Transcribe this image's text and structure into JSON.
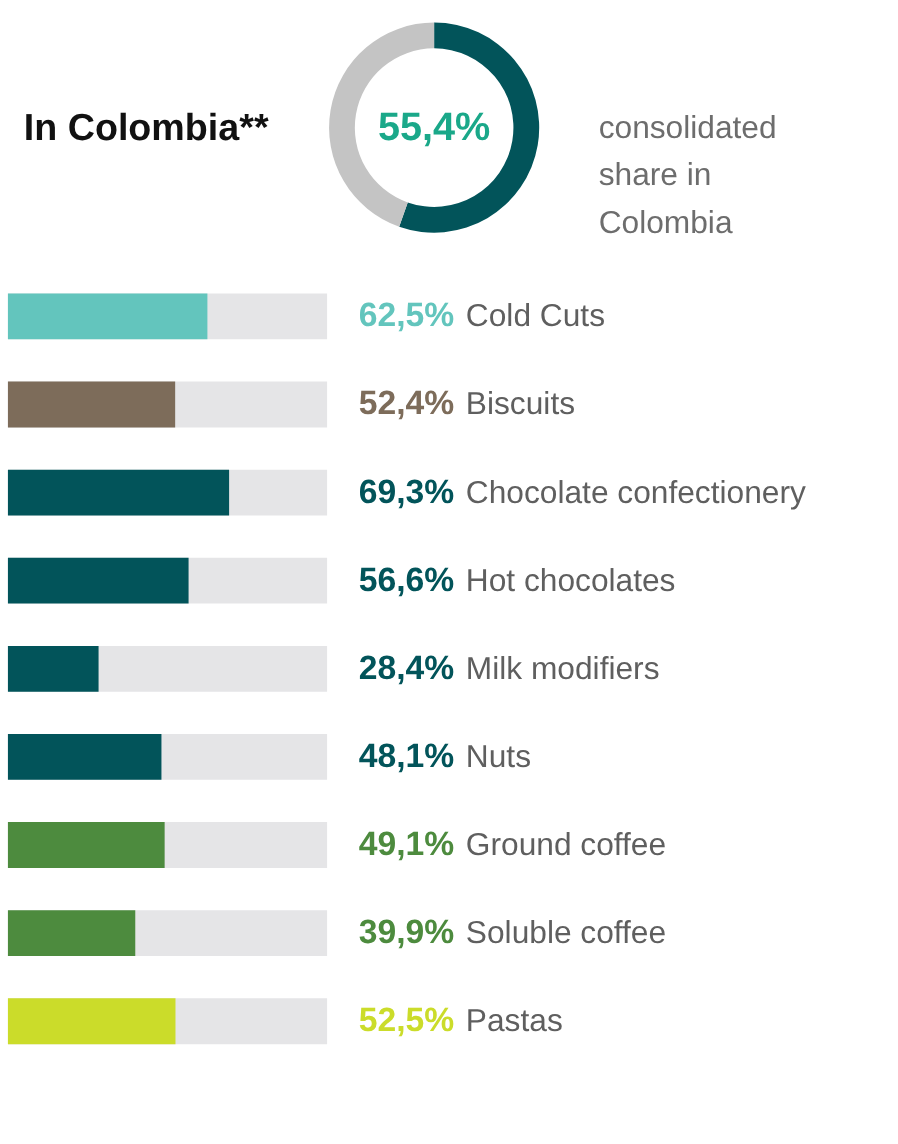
{
  "chart_data": [
    {
      "type": "donut",
      "title": "In Colombia**",
      "categories": [
        null,
        null
      ],
      "values": [
        55.4,
        44.6
      ],
      "colors": [
        "#02545a",
        "#c4c4c4"
      ],
      "value_labels": [
        "55,4%",
        null
      ],
      "annotations": [
        "consolidated share in Colombia"
      ]
    },
    {
      "type": "bar",
      "orientation": "horizontal",
      "tick_labels": false,
      "categories": [
        "Cold Cuts",
        "Biscuits",
        "Chocolate confectionery",
        "Hot chocolates",
        "Milk modifiers",
        "Nuts",
        "Ground coffee",
        "Soluble coffee",
        "Pastas"
      ],
      "values": [
        62.5,
        52.4,
        69.3,
        56.6,
        28.4,
        48.1,
        49.1,
        39.9,
        52.5
      ],
      "colors": [
        "#63c5bd",
        "#7d6c5a",
        "#02545a",
        "#02545a",
        "#02545a",
        "#02545a",
        "#4d8b3e",
        "#4d8b3e",
        "#cbdc2a"
      ],
      "value_labels": [
        "62,5%",
        "52,4%",
        "69,3%",
        "56,6%",
        "28,4%",
        "48,1%",
        "49,1%",
        "39,9%",
        "52,5%"
      ],
      "xlim": [
        0,
        100
      ],
      "bands": [
        {
          "axis": "x",
          "from": 0,
          "to": 100,
          "color": "#e5e5e7"
        }
      ]
    }
  ]
}
